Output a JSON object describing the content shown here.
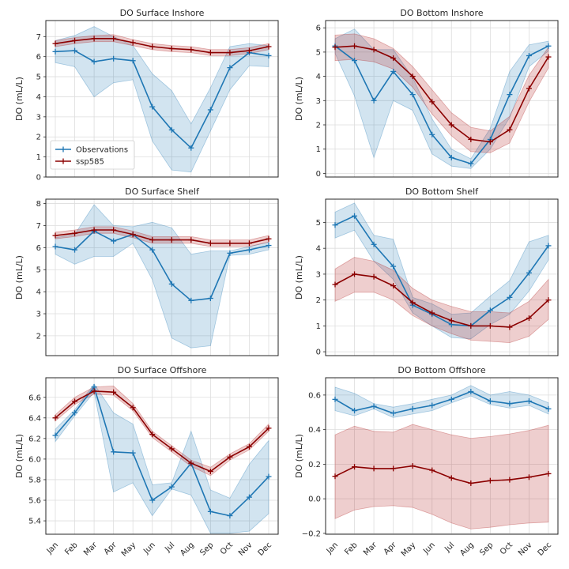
{
  "months": [
    "Jan",
    "Feb",
    "Mar",
    "Apr",
    "May",
    "Jun",
    "Jul",
    "Aug",
    "Sep",
    "Oct",
    "Nov",
    "Dec"
  ],
  "legend": {
    "observations": "Observations",
    "ssp585": "ssp585"
  },
  "colors": {
    "observations": "#1f77b4",
    "ssp585": "#8b0000",
    "obs_band": "#1f77b4",
    "ssp_band": "#b22222",
    "grid": "#dddddd",
    "axis": "#262626"
  },
  "chart_data": [
    {
      "type": "line",
      "title": "DO Surface Inshore",
      "ylabel": "DO (mL/L)",
      "ylim": [
        0,
        7.8
      ],
      "yticks": [
        0,
        1,
        2,
        3,
        4,
        5,
        6,
        7
      ],
      "x": [
        "Jan",
        "Feb",
        "Mar",
        "Apr",
        "May",
        "Jun",
        "Jul",
        "Aug",
        "Sep",
        "Oct",
        "Nov",
        "Dec"
      ],
      "series": [
        {
          "name": "Observations",
          "values": [
            6.25,
            6.3,
            5.75,
            5.9,
            5.8,
            3.5,
            2.35,
            1.45,
            3.35,
            5.45,
            6.2,
            6.05
          ],
          "lower": [
            5.7,
            5.5,
            4.0,
            4.7,
            4.85,
            1.8,
            0.35,
            0.25,
            2.3,
            4.35,
            5.55,
            5.5
          ],
          "upper": [
            6.8,
            7.05,
            7.5,
            7.0,
            6.55,
            5.15,
            4.3,
            2.65,
            4.45,
            6.5,
            6.65,
            6.55
          ]
        },
        {
          "name": "ssp585",
          "values": [
            6.65,
            6.8,
            6.9,
            6.9,
            6.7,
            6.5,
            6.4,
            6.35,
            6.2,
            6.2,
            6.3,
            6.5
          ],
          "lower": [
            6.5,
            6.65,
            6.75,
            6.75,
            6.55,
            6.35,
            6.25,
            6.2,
            6.05,
            6.05,
            6.15,
            6.35
          ],
          "upper": [
            6.8,
            6.95,
            7.05,
            7.1,
            6.85,
            6.65,
            6.55,
            6.5,
            6.35,
            6.35,
            6.45,
            6.65
          ]
        }
      ],
      "legend": "lower-left"
    },
    {
      "type": "line",
      "title": "DO Bottom Inshore",
      "ylabel": "DO (mL/L)",
      "ylim": [
        -0.15,
        6.3
      ],
      "yticks": [
        0,
        1,
        2,
        3,
        4,
        5,
        6
      ],
      "x": [
        "Jan",
        "Feb",
        "Mar",
        "Apr",
        "May",
        "Jun",
        "Jul",
        "Aug",
        "Sep",
        "Oct",
        "Nov",
        "Dec"
      ],
      "series": [
        {
          "name": "Observations",
          "values": [
            5.25,
            4.65,
            3.0,
            4.2,
            3.25,
            1.6,
            0.65,
            0.4,
            1.4,
            3.25,
            4.85,
            5.25
          ],
          "lower": [
            4.95,
            3.2,
            0.65,
            3.0,
            2.6,
            0.8,
            0.3,
            0.2,
            1.0,
            2.3,
            4.4,
            5.05
          ],
          "upper": [
            5.55,
            5.95,
            5.1,
            5.1,
            3.95,
            2.25,
            1.0,
            0.6,
            1.85,
            4.2,
            5.3,
            5.45
          ]
        },
        {
          "name": "ssp585",
          "values": [
            5.2,
            5.25,
            5.1,
            4.75,
            4.0,
            2.95,
            2.0,
            1.4,
            1.3,
            1.8,
            3.5,
            4.8
          ],
          "lower": [
            4.65,
            4.7,
            4.6,
            4.3,
            3.55,
            2.45,
            1.55,
            0.9,
            0.85,
            1.25,
            2.95,
            4.35
          ],
          "upper": [
            5.7,
            5.75,
            5.55,
            5.15,
            4.4,
            3.45,
            2.5,
            1.9,
            1.75,
            2.35,
            4.05,
            5.2
          ]
        }
      ]
    },
    {
      "type": "line",
      "title": "DO Surface Shelf",
      "ylabel": "DO (mL/L)",
      "ylim": [
        1.1,
        8.2
      ],
      "yticks": [
        2,
        3,
        4,
        5,
        6,
        7,
        8
      ],
      "x": [
        "Jan",
        "Feb",
        "Mar",
        "Apr",
        "May",
        "Jun",
        "Jul",
        "Aug",
        "Sep",
        "Oct",
        "Nov",
        "Dec"
      ],
      "series": [
        {
          "name": "Observations",
          "values": [
            6.05,
            5.9,
            6.75,
            6.3,
            6.6,
            5.9,
            4.35,
            3.6,
            3.7,
            5.75,
            5.9,
            6.1
          ],
          "lower": [
            5.7,
            5.25,
            5.6,
            5.6,
            6.2,
            4.55,
            1.9,
            1.45,
            1.55,
            5.65,
            5.7,
            5.9
          ],
          "upper": [
            6.45,
            6.6,
            7.95,
            7.0,
            6.95,
            7.15,
            6.9,
            5.7,
            5.85,
            5.85,
            6.05,
            6.25
          ]
        },
        {
          "name": "ssp585",
          "values": [
            6.55,
            6.65,
            6.8,
            6.8,
            6.6,
            6.35,
            6.35,
            6.35,
            6.2,
            6.2,
            6.2,
            6.4
          ],
          "lower": [
            6.4,
            6.5,
            6.65,
            6.65,
            6.45,
            6.2,
            6.2,
            6.2,
            6.05,
            6.05,
            6.05,
            6.25
          ],
          "upper": [
            6.7,
            6.8,
            6.95,
            6.95,
            6.75,
            6.5,
            6.5,
            6.5,
            6.35,
            6.35,
            6.35,
            6.55
          ]
        }
      ]
    },
    {
      "type": "line",
      "title": "DO Bottom Shelf",
      "ylabel": "DO (mL/L)",
      "ylim": [
        -0.15,
        5.9
      ],
      "yticks": [
        0,
        1,
        2,
        3,
        4,
        5
      ],
      "x": [
        "Jan",
        "Feb",
        "Mar",
        "Apr",
        "May",
        "Jun",
        "Jul",
        "Aug",
        "Sep",
        "Oct",
        "Nov",
        "Dec"
      ],
      "series": [
        {
          "name": "Observations",
          "values": [
            4.9,
            5.25,
            4.15,
            3.3,
            1.8,
            1.45,
            1.05,
            1.0,
            1.6,
            2.1,
            3.05,
            4.1
          ],
          "lower": [
            4.4,
            4.7,
            3.5,
            2.8,
            1.5,
            1.0,
            0.55,
            0.5,
            1.05,
            1.45,
            2.35,
            3.55
          ],
          "upper": [
            5.4,
            5.75,
            4.5,
            4.35,
            2.1,
            1.85,
            1.45,
            1.5,
            2.15,
            2.75,
            4.25,
            4.5
          ]
        },
        {
          "name": "ssp585",
          "values": [
            2.6,
            3.0,
            2.9,
            2.55,
            1.9,
            1.5,
            1.2,
            1.0,
            1.0,
            0.95,
            1.3,
            2.0
          ],
          "lower": [
            1.95,
            2.3,
            2.3,
            2.0,
            1.4,
            1.0,
            0.7,
            0.45,
            0.4,
            0.35,
            0.6,
            1.25
          ],
          "upper": [
            3.2,
            3.65,
            3.5,
            3.15,
            2.45,
            2.0,
            1.75,
            1.55,
            1.55,
            1.5,
            1.95,
            2.8
          ]
        }
      ]
    },
    {
      "type": "line",
      "title": "DO Surface Offshore",
      "ylabel": "DO (mL/L)",
      "ylim": [
        5.27,
        6.79
      ],
      "yticks": [
        5.4,
        5.6,
        5.8,
        6.0,
        6.2,
        6.4,
        6.6
      ],
      "ytick_labels": [
        "5.4",
        "5.6",
        "5.8",
        "6.0",
        "6.2",
        "6.4",
        "6.6"
      ],
      "x": [
        "Jan",
        "Feb",
        "Mar",
        "Apr",
        "May",
        "Jun",
        "Jul",
        "Aug",
        "Sep",
        "Oct",
        "Nov",
        "Dec"
      ],
      "series": [
        {
          "name": "Observations",
          "values": [
            6.23,
            6.45,
            6.7,
            6.07,
            6.06,
            5.6,
            5.73,
            5.96,
            5.49,
            5.45,
            5.63,
            5.83
          ],
          "lower": [
            6.17,
            6.42,
            6.65,
            5.68,
            5.77,
            5.45,
            5.71,
            5.65,
            5.28,
            5.28,
            5.3,
            5.47
          ],
          "upper": [
            6.29,
            6.48,
            6.73,
            6.45,
            6.34,
            5.75,
            5.77,
            6.27,
            5.7,
            5.62,
            5.95,
            6.18
          ]
        },
        {
          "name": "ssp585",
          "values": [
            6.4,
            6.56,
            6.66,
            6.65,
            6.5,
            6.24,
            6.1,
            5.96,
            5.88,
            6.02,
            6.12,
            6.3
          ],
          "lower": [
            6.37,
            6.53,
            6.63,
            6.62,
            6.47,
            6.21,
            6.07,
            5.93,
            5.84,
            5.99,
            6.09,
            6.27
          ],
          "upper": [
            6.43,
            6.6,
            6.7,
            6.71,
            6.54,
            6.27,
            6.13,
            5.99,
            5.92,
            6.05,
            6.15,
            6.34
          ]
        }
      ]
    },
    {
      "type": "line",
      "title": "DO Bottom Offshore",
      "ylabel": "DO (mL/L)",
      "ylim": [
        -0.205,
        0.7
      ],
      "yticks": [
        -0.2,
        0.0,
        0.2,
        0.4,
        0.6
      ],
      "ytick_labels": [
        "−0.2",
        "0.0",
        "0.2",
        "0.4",
        "0.6"
      ],
      "x": [
        "Jan",
        "Feb",
        "Mar",
        "Apr",
        "May",
        "Jun",
        "Jul",
        "Aug",
        "Sep",
        "Oct",
        "Nov",
        "Dec"
      ],
      "series": [
        {
          "name": "Observations",
          "values": [
            0.575,
            0.51,
            0.535,
            0.495,
            0.52,
            0.54,
            0.575,
            0.62,
            0.565,
            0.55,
            0.565,
            0.52
          ],
          "lower": [
            0.51,
            0.48,
            0.52,
            0.47,
            0.49,
            0.51,
            0.555,
            0.595,
            0.545,
            0.525,
            0.54,
            0.49
          ],
          "upper": [
            0.645,
            0.61,
            0.55,
            0.53,
            0.55,
            0.575,
            0.6,
            0.655,
            0.6,
            0.62,
            0.6,
            0.555
          ]
        },
        {
          "name": "ssp585",
          "values": [
            0.13,
            0.185,
            0.175,
            0.175,
            0.19,
            0.165,
            0.12,
            0.09,
            0.105,
            0.11,
            0.125,
            0.145
          ],
          "lower": [
            -0.115,
            -0.065,
            -0.045,
            -0.04,
            -0.05,
            -0.09,
            -0.14,
            -0.175,
            -0.165,
            -0.15,
            -0.14,
            -0.135
          ],
          "upper": [
            0.37,
            0.42,
            0.39,
            0.385,
            0.43,
            0.4,
            0.37,
            0.35,
            0.36,
            0.375,
            0.395,
            0.425
          ]
        }
      ]
    }
  ]
}
